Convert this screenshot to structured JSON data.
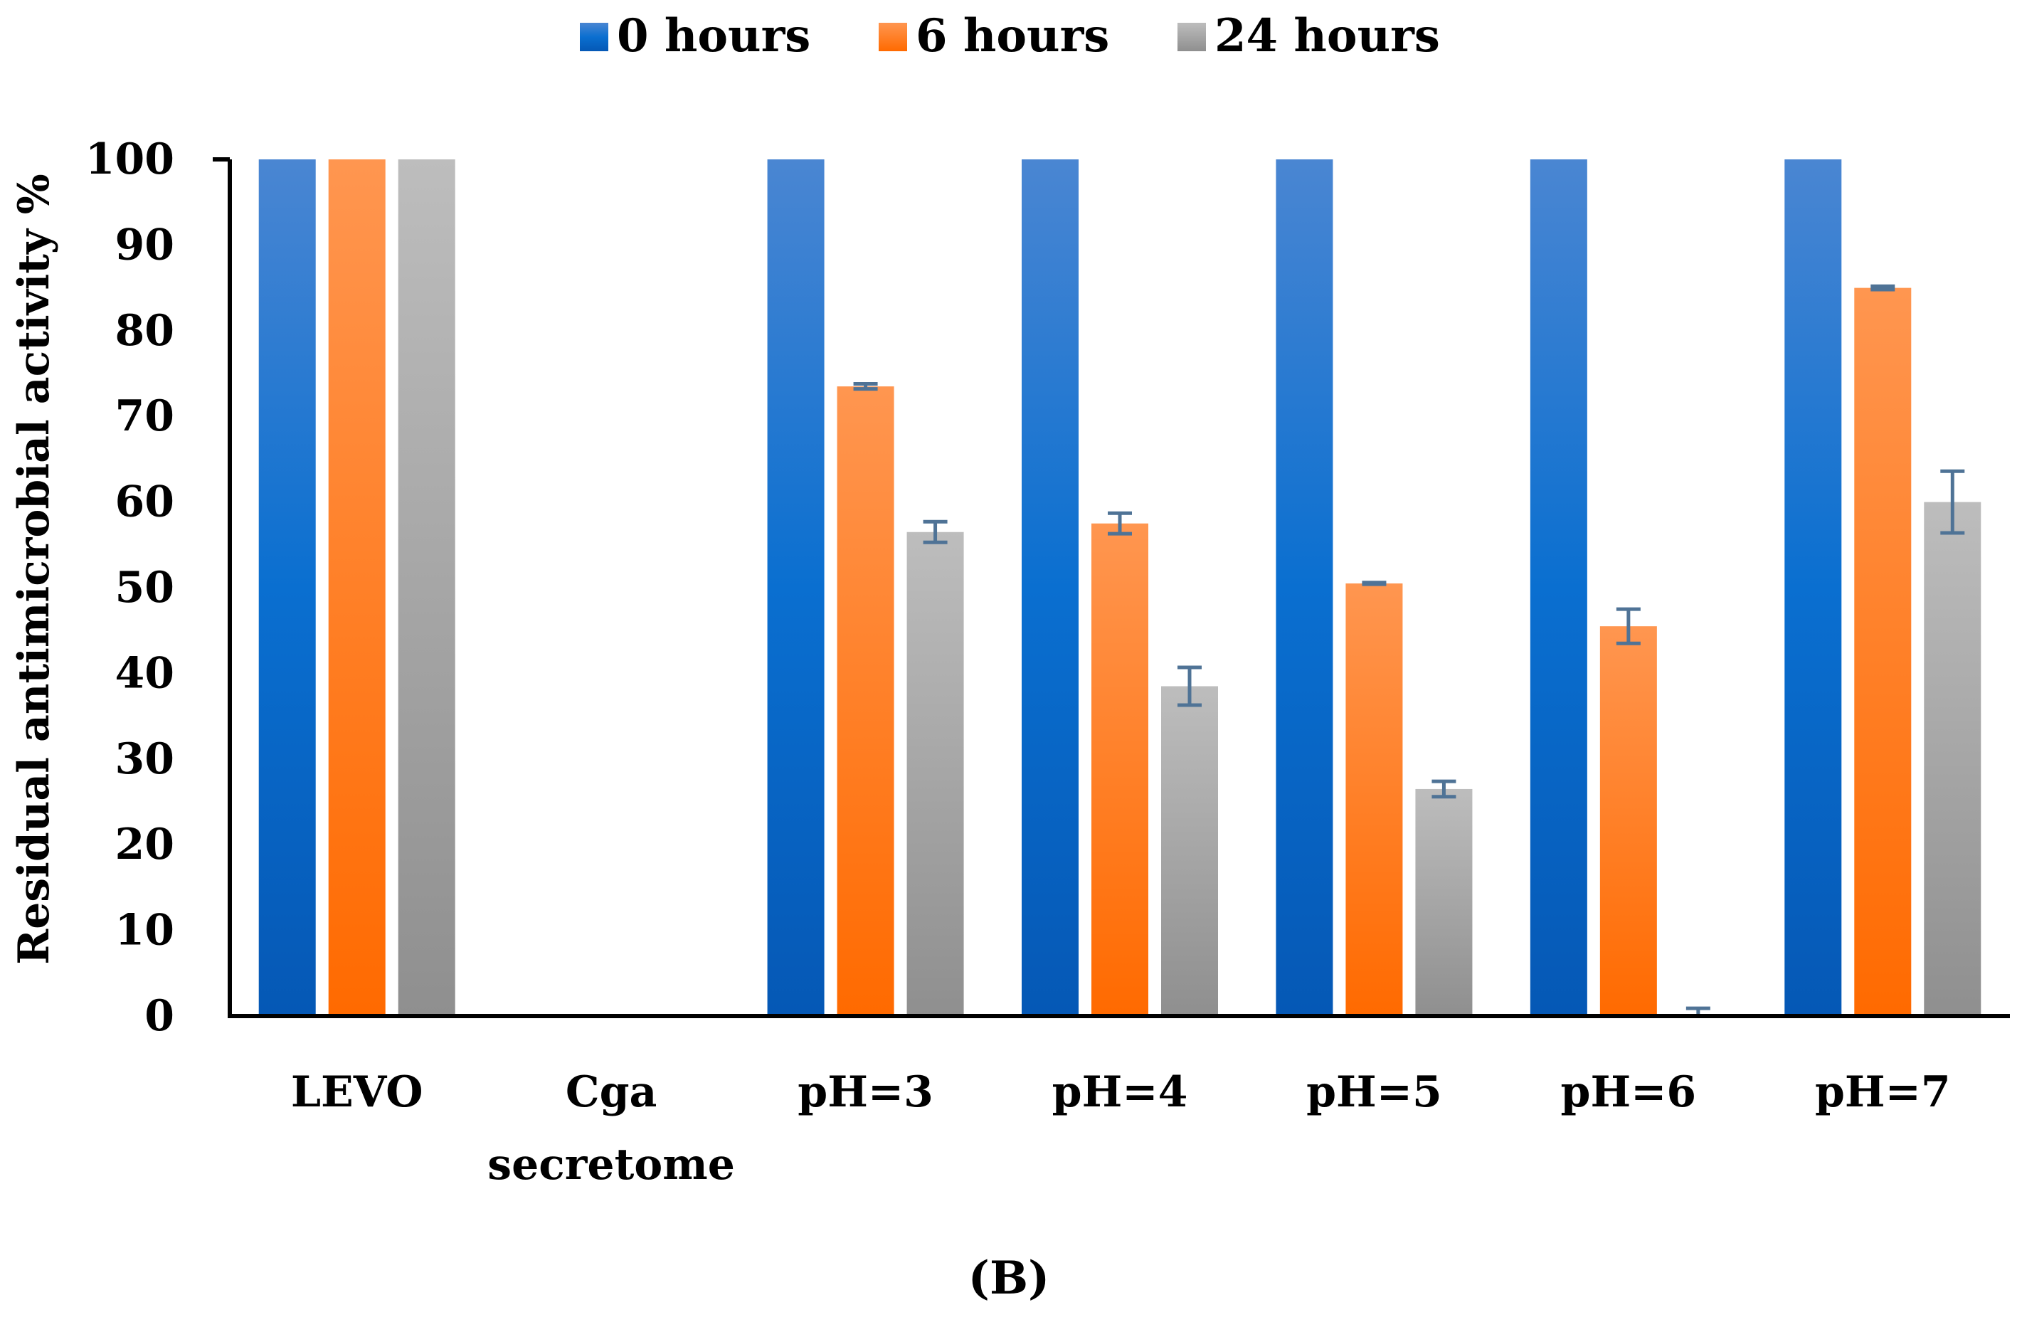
{
  "chart_data": {
    "type": "bar",
    "categories": [
      [
        "LEVO"
      ],
      [
        "Cga",
        "secretome"
      ],
      [
        "pH=3"
      ],
      [
        "pH=4"
      ],
      [
        "pH=5"
      ],
      [
        "pH=6"
      ],
      [
        "pH=7"
      ]
    ],
    "series": [
      {
        "name": "0 hours",
        "color": "#1f6fd0",
        "values": [
          100,
          0,
          100,
          100,
          100,
          100,
          100
        ],
        "errors": [
          0,
          0,
          0,
          0,
          0,
          0,
          0
        ]
      },
      {
        "name": "6 hours",
        "color": "#ff7b1c",
        "values": [
          100,
          0,
          73.5,
          57.5,
          50.5,
          45.5,
          85
        ],
        "errors": [
          0,
          0,
          0.3,
          1.2,
          0.1,
          2.0,
          0.2
        ]
      },
      {
        "name": "24 hours",
        "color": "#a9a9a9",
        "values": [
          100,
          0,
          56.5,
          38.5,
          26.5,
          0,
          60
        ],
        "errors": [
          0,
          0,
          1.2,
          2.2,
          0.9,
          0.9,
          3.6
        ]
      }
    ],
    "title": "",
    "xlabel": "",
    "ylabel": "Residual antimicrobial activity %",
    "ylim": [
      0,
      100
    ],
    "yticks": [
      0,
      10,
      20,
      30,
      40,
      50,
      60,
      70,
      80,
      90,
      100
    ],
    "legend_position": "top-center",
    "grid": false
  },
  "caption": "(B)"
}
